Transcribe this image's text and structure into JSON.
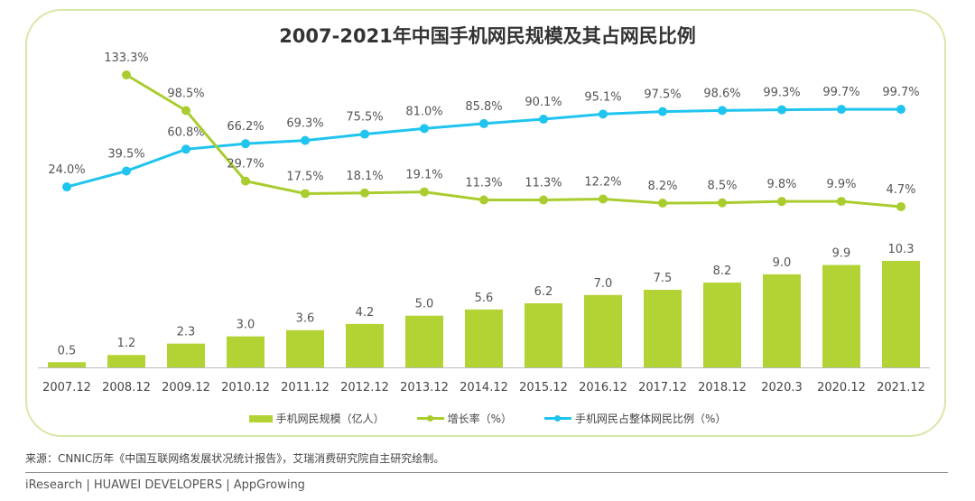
{
  "chart_data": {
    "type": "bar+line",
    "title": "2007-2021年中国手机网民规模及其占网民比例",
    "categories": [
      "2007.12",
      "2008.12",
      "2009.12",
      "2010.12",
      "2011.12",
      "2012.12",
      "2013.12",
      "2014.12",
      "2015.12",
      "2016.12",
      "2017.12",
      "2018.12",
      "2020.3",
      "2020.12",
      "2021.12"
    ],
    "series": [
      {
        "name": "手机网民规模（亿人）",
        "type": "bar",
        "color": "#b3d334",
        "values": [
          0.5,
          1.2,
          2.3,
          3.0,
          3.6,
          4.2,
          5.0,
          5.6,
          6.2,
          7.0,
          7.5,
          8.2,
          9.0,
          9.9,
          10.3
        ],
        "labels": [
          "0.5",
          "1.2",
          "2.3",
          "3.0",
          "3.6",
          "4.2",
          "5.0",
          "5.6",
          "6.2",
          "7.0",
          "7.5",
          "8.2",
          "9.0",
          "9.9",
          "10.3"
        ]
      },
      {
        "name": "增长率（%）",
        "type": "line",
        "color": "#a9cd2e",
        "values": [
          null,
          133.3,
          98.5,
          29.7,
          17.5,
          18.1,
          19.1,
          11.3,
          11.3,
          12.2,
          8.2,
          8.5,
          9.8,
          9.9,
          4.7
        ],
        "labels": [
          null,
          "133.3%",
          "98.5%",
          "29.7%",
          "17.5%",
          "18.1%",
          "19.1%",
          "11.3%",
          "11.3%",
          "12.2%",
          "8.2%",
          "8.5%",
          "9.8%",
          "9.9%",
          "4.7%"
        ]
      },
      {
        "name": "手机网民占整体网民比例（%）",
        "type": "line",
        "color": "#1fc4ef",
        "values": [
          24.0,
          39.5,
          60.8,
          66.2,
          69.3,
          75.5,
          81.0,
          85.8,
          90.1,
          95.1,
          97.5,
          98.6,
          99.3,
          99.7,
          99.7
        ],
        "labels": [
          "24.0%",
          "39.5%",
          "60.8%",
          "66.2%",
          "69.3%",
          "75.5%",
          "81.0%",
          "85.8%",
          "90.1%",
          "95.1%",
          "97.5%",
          "98.6%",
          "99.3%",
          "99.7%",
          "99.7%"
        ]
      }
    ],
    "legend": "bottom",
    "grid": false
  },
  "legend": {
    "bar": "手机网民规模（亿人）",
    "growth": "增长率（%）",
    "share": "手机网民占整体网民比例（%）"
  },
  "footer": {
    "source": "来源：CNNIC历年《中国互联网络发展状况统计报告》，艾瑞消费研究院自主研究绘制。",
    "credits": "iResearch | HUAWEI DEVELOPERS | AppGrowing"
  }
}
